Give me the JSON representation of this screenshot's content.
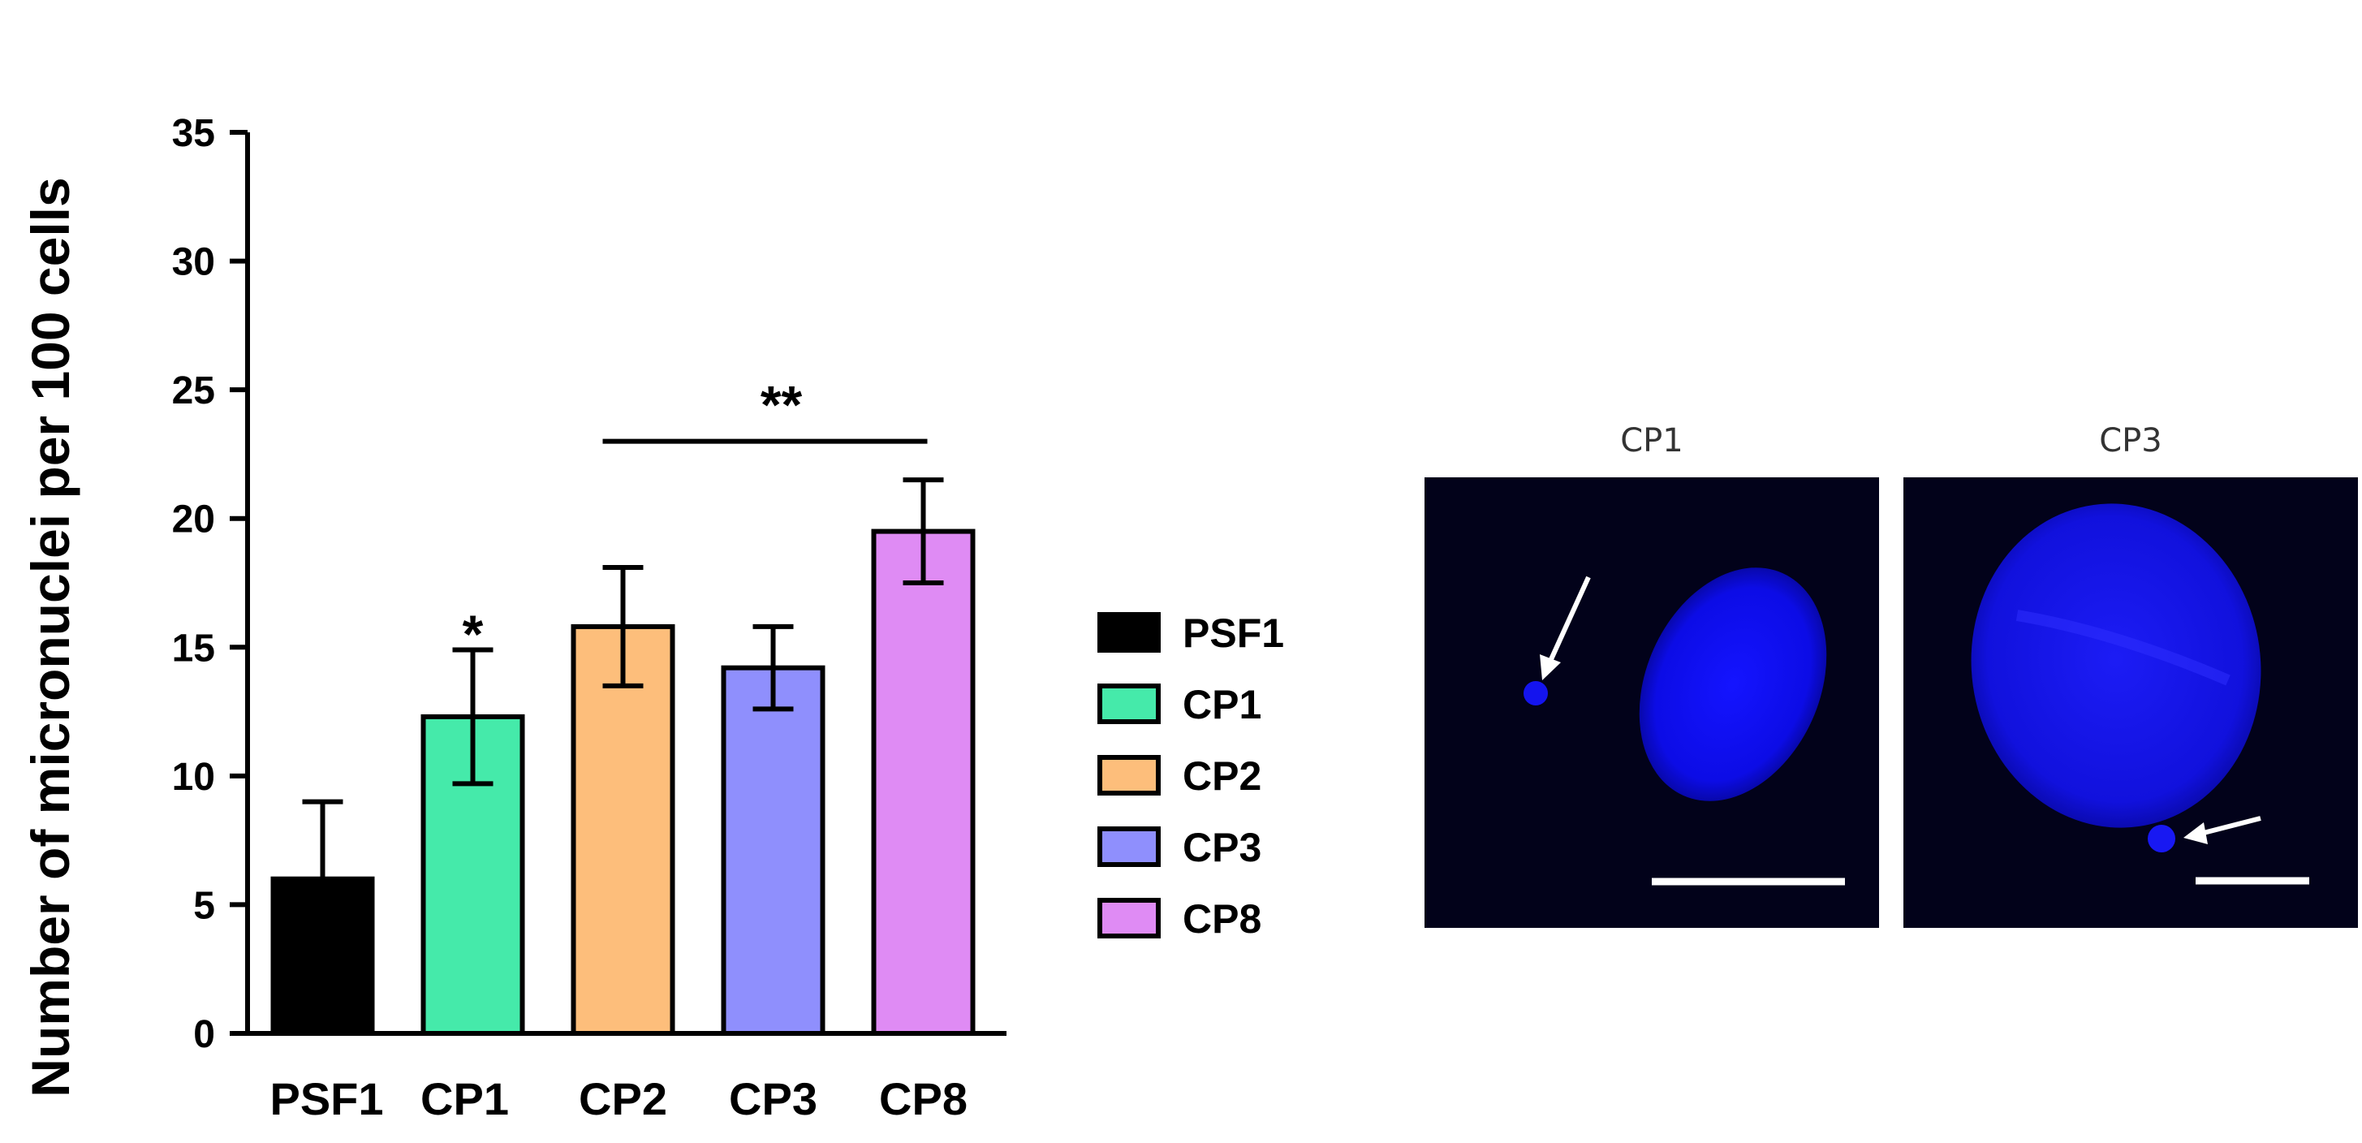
{
  "chart_data": {
    "type": "bar",
    "categories": [
      "PSF1",
      "CP1",
      "CP2",
      "CP3",
      "CP8"
    ],
    "values": [
      6.0,
      12.3,
      15.8,
      14.2,
      19.5
    ],
    "errors": [
      3.0,
      2.6,
      2.3,
      1.6,
      2.0
    ],
    "colors": [
      "#000000",
      "#45eaaa",
      "#fdbe7b",
      "#8f8ffd",
      "#df8bf4"
    ],
    "title": "",
    "xlabel": "",
    "ylabel": "Number of micronuclei per 100 cells",
    "ylim": [
      0,
      35
    ],
    "yticks": [
      0,
      5,
      10,
      15,
      20,
      25,
      30,
      35
    ],
    "grid": false,
    "legend": {
      "placement": "right",
      "entries": [
        "PSF1",
        "CP1",
        "CP2",
        "CP3",
        "CP8"
      ]
    },
    "annotations": [
      {
        "text": "*",
        "category": "CP1",
        "y": 16.2
      },
      {
        "text": "**",
        "from": "CP2",
        "to": "CP8",
        "y": 23.0
      }
    ]
  },
  "images": [
    {
      "title": "CP1",
      "colors": {
        "background": "#02021a",
        "nucleus": "#1010ff",
        "arrow": "#ffffff"
      }
    },
    {
      "title": "CP3",
      "colors": {
        "background": "#02021a",
        "nucleus": "#1a1af0",
        "arrow": "#ffffff"
      }
    }
  ]
}
